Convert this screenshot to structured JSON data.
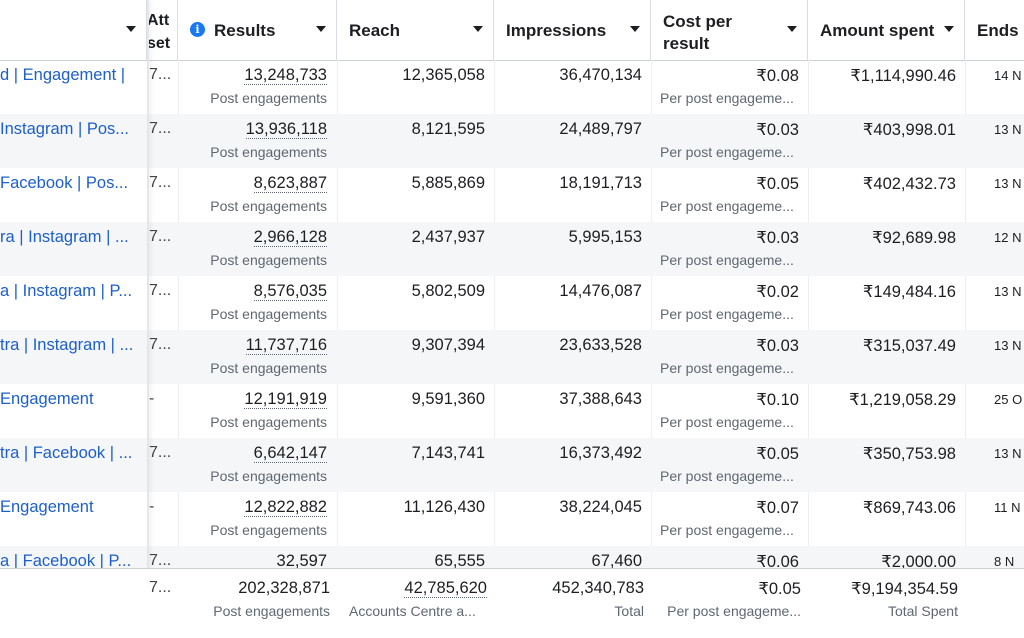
{
  "columns": {
    "attribution": "Att",
    "attribution_line2": "set",
    "results": "Results",
    "reach": "Reach",
    "impressions": "Impressions",
    "cost_per_result_1": "Cost per",
    "cost_per_result_2": "result",
    "amount_spent": "Amount spent",
    "ends": "Ends"
  },
  "rows": [
    {
      "name": "d | Engagement |",
      "attr": "7...",
      "results": "13,248,733",
      "results_sub": "Post engagements",
      "reach": "12,365,058",
      "impressions": "36,470,134",
      "cpr": "₹0.08",
      "cpr_sub": "Per post engageme...",
      "spent": "₹1,114,990.46",
      "ends": "14 N"
    },
    {
      "name": " Instagram | Pos...",
      "attr": "7...",
      "results": "13,936,118",
      "results_sub": "Post engagements",
      "reach": "8,121,595",
      "impressions": "24,489,797",
      "cpr": "₹0.03",
      "cpr_sub": "Per post engageme...",
      "spent": "₹403,998.01",
      "ends": "13 N"
    },
    {
      "name": " Facebook | Pos...",
      "attr": "7...",
      "results": "8,623,887",
      "results_sub": "Post engagements",
      "reach": "5,885,869",
      "impressions": "18,191,713",
      "cpr": "₹0.05",
      "cpr_sub": "Per post engageme...",
      "spent": "₹402,432.73",
      "ends": "13 N"
    },
    {
      "name": "ra | Instagram | ...",
      "attr": "7...",
      "results": "2,966,128",
      "results_sub": "Post engagements",
      "reach": "2,437,937",
      "impressions": "5,995,153",
      "cpr": "₹0.03",
      "cpr_sub": "Per post engageme...",
      "spent": "₹92,689.98",
      "ends": "12 N"
    },
    {
      "name": "a | Instagram | P...",
      "attr": "7...",
      "results": "8,576,035",
      "results_sub": "Post engagements",
      "reach": "5,802,509",
      "impressions": "14,476,087",
      "cpr": "₹0.02",
      "cpr_sub": "Per post engageme...",
      "spent": "₹149,484.16",
      "ends": "13 N"
    },
    {
      "name": "tra | Instagram | ...",
      "attr": "7...",
      "results": "11,737,716",
      "results_sub": "Post engagements",
      "reach": "9,307,394",
      "impressions": "23,633,528",
      "cpr": "₹0.03",
      "cpr_sub": "Per post engageme...",
      "spent": "₹315,037.49",
      "ends": "13 N"
    },
    {
      "name": " Engagement",
      "attr": "-",
      "results": "12,191,919",
      "results_sub": "Post engagements",
      "reach": "9,591,360",
      "impressions": "37,388,643",
      "cpr": "₹0.10",
      "cpr_sub": "Per post engageme...",
      "spent": "₹1,219,058.29",
      "ends": "25 O"
    },
    {
      "name": "tra | Facebook | ...",
      "attr": "7...",
      "results": "6,642,147",
      "results_sub": "Post engagements",
      "reach": "7,143,741",
      "impressions": "16,373,492",
      "cpr": "₹0.05",
      "cpr_sub": "Per post engageme...",
      "spent": "₹350,753.98",
      "ends": "13 N"
    },
    {
      "name": " Engagement",
      "attr": "-",
      "results": "12,822,882",
      "results_sub": "Post engagements",
      "reach": "11,126,430",
      "impressions": "38,224,045",
      "cpr": "₹0.07",
      "cpr_sub": "Per post engageme...",
      "spent": "₹869,743.06",
      "ends": "11 N"
    },
    {
      "name": "a | Facebook | P...",
      "attr": "7...",
      "results": "32,597",
      "results_sub": "",
      "reach": "65,555",
      "impressions": "67,460",
      "cpr": "₹0.06",
      "cpr_sub": "",
      "spent": "₹2,000.00",
      "ends": "8 N"
    }
  ],
  "totals": {
    "attr": "7...",
    "results": "202,328,871",
    "results_sub": "Post engagements",
    "reach": "42,785,620",
    "reach_sub": "Accounts Centre a...",
    "impressions": "452,340,783",
    "impressions_sub": "Total",
    "cpr": "₹0.05",
    "cpr_sub": "Per post engageme...",
    "spent": "₹9,194,354.59",
    "spent_sub": "Total Spent"
  },
  "colors": {
    "link": "#1d5fc9",
    "info": "#1877f2"
  }
}
